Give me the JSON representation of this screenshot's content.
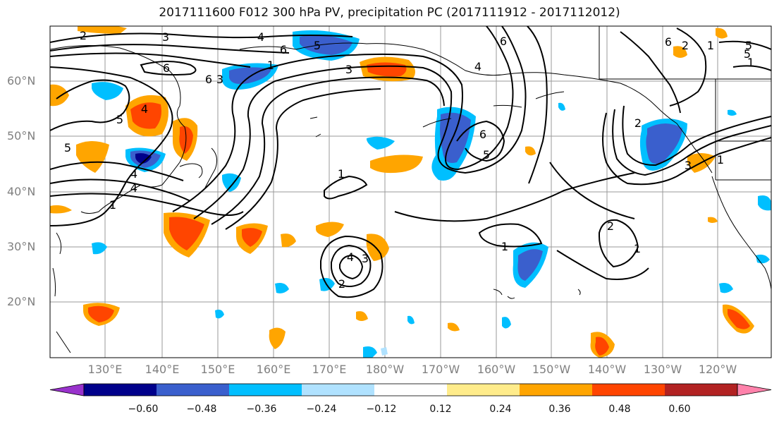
{
  "title": "2017111600 F012 300 hPa PV, precipitation PC (2017111912 - 2017112012)",
  "latitude_labels": [
    "60°N",
    "50°N",
    "40°N",
    "30°N",
    "20°N"
  ],
  "longitude_labels": [
    "130°E",
    "140°E",
    "150°E",
    "160°E",
    "170°E",
    "180°W",
    "170°W",
    "160°W",
    "150°W",
    "140°W",
    "130°W",
    "120°W"
  ],
  "colorbar": {
    "colors": [
      "#9932cc",
      "#00008b",
      "#3a5fcd",
      "#00bfff",
      "#b0e2ff",
      "#ffffff",
      "#ffec8b",
      "#ffa500",
      "#ff4500",
      "#b22222",
      "#ff82ab"
    ],
    "tick_labels": [
      "−0.60",
      "−0.48",
      "−0.36",
      "−0.24",
      "−0.12",
      "0.12",
      "0.24",
      "0.36",
      "0.48",
      "0.60"
    ]
  },
  "contour_labels": [
    "2",
    "3",
    "4",
    "5",
    "6",
    "5",
    "4",
    "3",
    "1",
    "1",
    "4",
    "5",
    "6",
    "6",
    "5",
    "4",
    "3",
    "2",
    "1",
    "1",
    "2",
    "3",
    "4",
    "5",
    "6",
    "1",
    "1",
    "1",
    "2",
    "3",
    "4",
    "5",
    "2",
    "6",
    "6",
    "1"
  ],
  "map": {
    "type": "polar-projected contour and filled-shading map",
    "contour_color": "#000000",
    "grid_color": "#999999"
  }
}
